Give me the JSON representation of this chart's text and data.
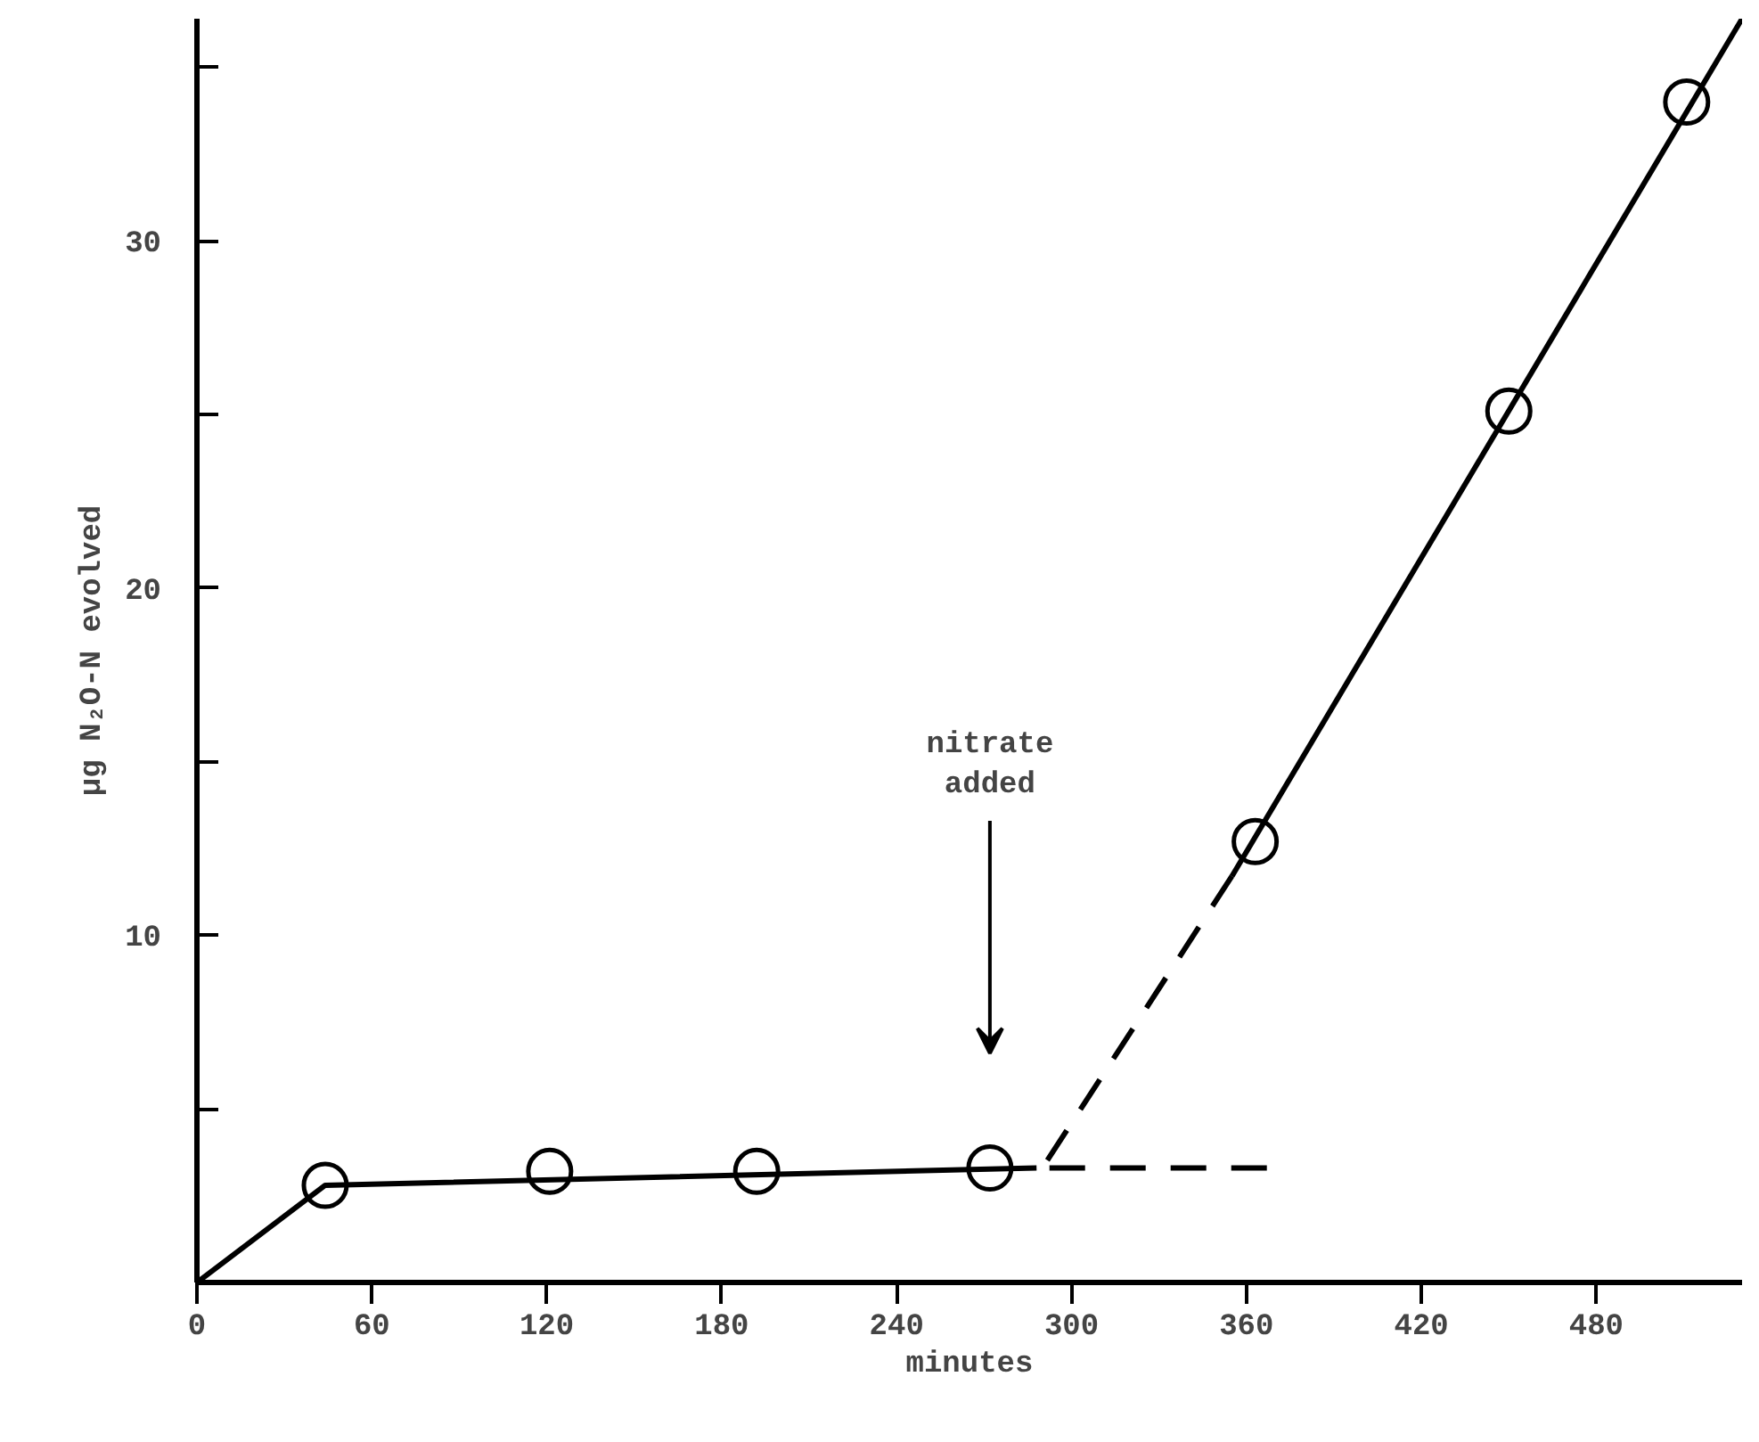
{
  "chart_data": {
    "type": "line",
    "xlabel": "minutes",
    "ylabel": "µg N₂O-N evolved",
    "xlim": [
      0,
      530
    ],
    "ylim": [
      0,
      36.4
    ],
    "xticks": [
      0,
      60,
      120,
      180,
      240,
      300,
      360,
      420,
      480
    ],
    "yticks": [
      {
        "value": 0,
        "label": null
      },
      {
        "value": 5,
        "label": null
      },
      10,
      {
        "value": 15,
        "label": null
      },
      20,
      {
        "value": 25,
        "label": null
      },
      30,
      {
        "value": 35,
        "label": null
      }
    ],
    "grid": false,
    "series": [
      {
        "type": "scatter",
        "marker": "circle",
        "color": "#000000",
        "x": [
          44,
          121,
          192,
          272,
          363,
          450,
          511
        ],
        "values": [
          2.8,
          3.2,
          3.2,
          3.3,
          12.7,
          25.1,
          34.0
        ]
      },
      {
        "line_style": "solid",
        "color": "#000000",
        "x": [
          0,
          44,
          288
        ],
        "values": [
          0,
          2.8,
          3.3
        ]
      },
      {
        "line_style": "dashed",
        "color": "#000000",
        "x": [
          288,
          367
        ],
        "values": [
          3.3,
          3.3
        ]
      },
      {
        "line_style": "dashed",
        "color": "#000000",
        "x": [
          290,
          355
        ],
        "values": [
          3.3,
          11.7
        ]
      },
      {
        "line_style": "solid",
        "color": "#000000",
        "x": [
          355,
          530
        ],
        "values": [
          11.7,
          36.4
        ]
      }
    ],
    "annotations": [
      "nitrate added"
    ]
  }
}
